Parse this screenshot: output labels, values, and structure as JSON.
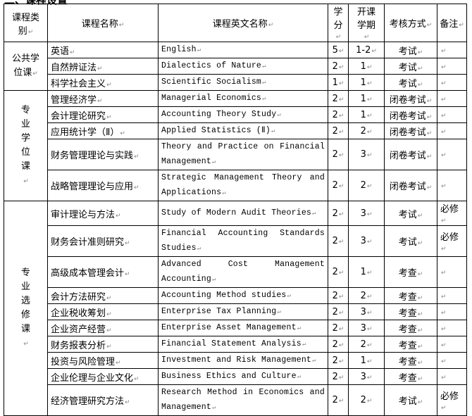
{
  "section_title": "二、课程设置",
  "headers": {
    "category": "课程类别",
    "name": "课程名称",
    "english": "课程英文名称",
    "credits": "学分",
    "semester": "开课学期",
    "assessment": "考核方式",
    "notes": "备注"
  },
  "groups": [
    {
      "category": "公共学位课",
      "rows": [
        {
          "name": "英语",
          "english": "English",
          "credits": "5",
          "semester": "1-2",
          "assessment": "考试",
          "notes": ""
        },
        {
          "name": "自然辨证法",
          "english": "Dialectics of Nature",
          "credits": "2",
          "semester": "1",
          "assessment": "考试",
          "notes": ""
        },
        {
          "name": "科学社会主义",
          "english": "Scientific Socialism",
          "credits": "1",
          "semester": "1",
          "assessment": "考试",
          "notes": ""
        }
      ]
    },
    {
      "category": "专业学位课",
      "rows": [
        {
          "name": "管理经济学",
          "english": "Managerial Economics",
          "credits": "2",
          "semester": "1",
          "assessment": "闭卷考试",
          "notes": ""
        },
        {
          "name": "会计理论研究",
          "english": "Accounting Theory Study",
          "credits": "2",
          "semester": "1",
          "assessment": "闭卷考试",
          "notes": ""
        },
        {
          "name": "应用统计学（Ⅱ）",
          "english": "Applied Statistics (Ⅱ)",
          "credits": "2",
          "semester": "2",
          "assessment": "闭卷考试",
          "notes": ""
        },
        {
          "name": "财务管理理论与实践",
          "english": "Theory and Practice on Financial Management",
          "credits": "2",
          "semester": "3",
          "assessment": "闭卷考试",
          "notes": "",
          "two": true
        },
        {
          "name": "战略管理理论与应用",
          "english": "Strategic Management Theory and Applications",
          "credits": "2",
          "semester": "2",
          "assessment": "闭卷考试",
          "notes": "",
          "two": true
        }
      ]
    },
    {
      "category": "专业选修课",
      "rows": [
        {
          "name": "审计理论与方法",
          "english": "Study of Modern Audit Theories",
          "credits": "2",
          "semester": "3",
          "assessment": "考试",
          "notes": "必修"
        },
        {
          "name": "财务会计准则研究",
          "english": "Financial Accounting Standards Studies",
          "credits": "2",
          "semester": "3",
          "assessment": "考试",
          "notes": "必修",
          "two": true
        },
        {
          "name": "高级成本管理会计",
          "english": "Advanced Cost Management Accounting",
          "credits": "2",
          "semester": "1",
          "assessment": "考查",
          "notes": "",
          "two": true
        },
        {
          "name": "会计方法研究",
          "english": "Accounting Method studies",
          "credits": "2",
          "semester": "2",
          "assessment": "考查",
          "notes": ""
        },
        {
          "name": "企业税收筹划",
          "english": "Enterprise Tax Planning",
          "credits": "2",
          "semester": "3",
          "assessment": "考查",
          "notes": ""
        },
        {
          "name": "企业资产经营",
          "english": "Enterprise Asset Management",
          "credits": "2",
          "semester": "3",
          "assessment": "考查",
          "notes": ""
        },
        {
          "name": "财务报表分析",
          "english": "Financial Statement Analysis",
          "credits": "2",
          "semester": "2",
          "assessment": "考查",
          "notes": ""
        },
        {
          "name": "投资与风险管理",
          "english": "Investment and Risk Management",
          "credits": "2",
          "semester": "1",
          "assessment": "考查",
          "notes": ""
        },
        {
          "name": "企业伦理与企业文化",
          "english": "Business Ethics and Culture",
          "credits": "2",
          "semester": "3",
          "assessment": "考查",
          "notes": ""
        },
        {
          "name": "经济管理研究方法",
          "english": "Research Method in Economics and Management",
          "credits": "2",
          "semester": "2",
          "assessment": "考试",
          "notes": "必修",
          "two": true
        }
      ]
    }
  ]
}
